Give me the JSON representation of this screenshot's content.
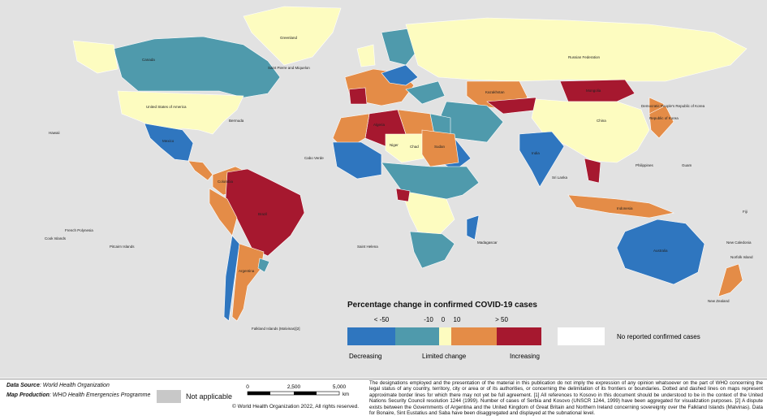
{
  "country_labels": [
    "Greenland",
    "Canada",
    "United States of America",
    "Mexico",
    "Brazil",
    "Argentina",
    "Colombia",
    "Russian Federation",
    "Kazakhstan",
    "Mongolia",
    "China",
    "India",
    "Australia",
    "Niger",
    "Chad",
    "Sudan",
    "Algeria",
    "Saint Pierre and Miquelon",
    "Bermuda",
    "Cabo Verde",
    "Falkland Islands (Malvinas)[2]",
    "New Zealand",
    "Philippines",
    "Indonesia",
    "Sri Lanka",
    "Hawaii",
    "French Polynesia",
    "Cook Islands",
    "Pitcairn Islands",
    "Saint Helena",
    "Madagascar",
    "Democratic People's Republic of Korea",
    "Republic of Korea",
    "Guam",
    "Fiji",
    "New Caledonia",
    "Norfolk Island"
  ],
  "legend": {
    "title": "Percentage change in confirmed COVID-19 cases",
    "breaks": [
      "< -50",
      "-10",
      "0",
      "10",
      "> 50"
    ],
    "colors": [
      "#2f76bf",
      "#4f9aac",
      "#fdfcc0",
      "#e48c47",
      "#a6182f"
    ],
    "groups": [
      "Decreasing",
      "Limited change",
      "Increasing"
    ],
    "no_cases": "No reported confirmed cases"
  },
  "footer": {
    "data_source_label": "Data Source",
    "data_source": ": World Health Organization",
    "map_production_label": "Map Production",
    "map_production": ": WHO Health Emergencies Programme",
    "not_applicable": "Not applicable",
    "scale": [
      "0",
      "2,500",
      "5,000",
      "km"
    ],
    "copyright": "© World Health Organization 2022, All rights reserved.",
    "disclaimer": "The designations employed and the presentation of the material in this publication do not imply the expression of any opinion whatsoever on the part of WHO concerning the legal status of any country, territory, city or area or of its authorities, or concerning the delimitation of its frontiers or boundaries. Dotted and dashed lines on maps represent approximate border lines for which there may not yet be full agreement. [1] All references to Kosovo in this document should be understood to be in the context of the United Nations Security Council resolution 1244 (1999). Number of cases of Serbia and Kosovo (UNSCR 1244, 1999) have been aggregated for visualization purposes. [2] A dispute exists between the Governments of Argentina and the United Kingdom of Great Britain and Northern Ireland concerning sovereignty over the Falkland Islands (Malvinas). Data for Bonaire, Sint Eustatius and Saba have been disaggregated and displayed at the subnational level."
  }
}
